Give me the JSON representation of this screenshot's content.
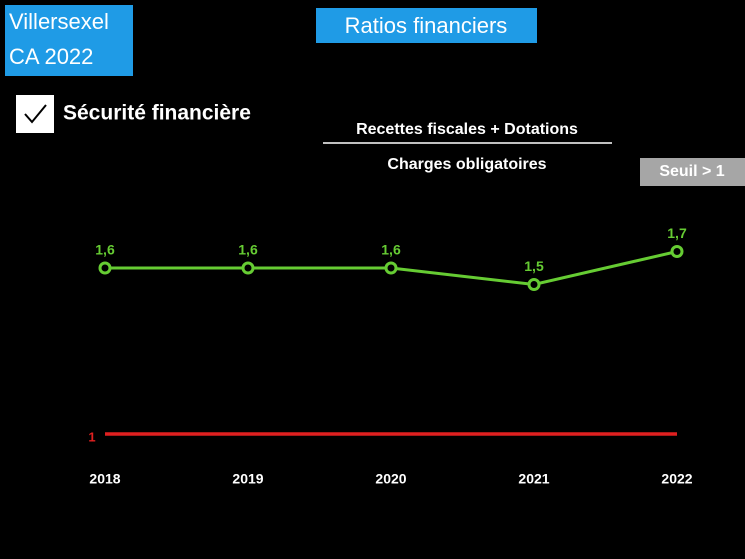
{
  "header": {
    "city": "Villersexel",
    "subtitle": "CA 2022",
    "section": "Ratios financiers",
    "indicator": "Sécurité financière",
    "numerator": "Recettes fiscales + Dotations",
    "denominator": "Charges obligatoires",
    "threshold_badge": "Seuil > 1"
  },
  "chart_data": {
    "type": "line",
    "categories": [
      "2018",
      "2019",
      "2020",
      "2021",
      "2022"
    ],
    "ylim": [
      0.5,
      2.0
    ],
    "y2lim": [
      0.9,
      2.5
    ],
    "series": [
      {
        "color": "#66cc33",
        "values": [
          1.6,
          1.6,
          1.6,
          1.5,
          1.7
        ],
        "value_labels": [
          "1,6",
          "1,6",
          "1,6",
          "1,5",
          "1,7"
        ]
      },
      {
        "color": "#e02020",
        "axis": "y2",
        "values": [
          1,
          1,
          1,
          1,
          1
        ],
        "value_labels": [
          "1",
          null,
          null,
          null,
          null
        ]
      }
    ]
  }
}
